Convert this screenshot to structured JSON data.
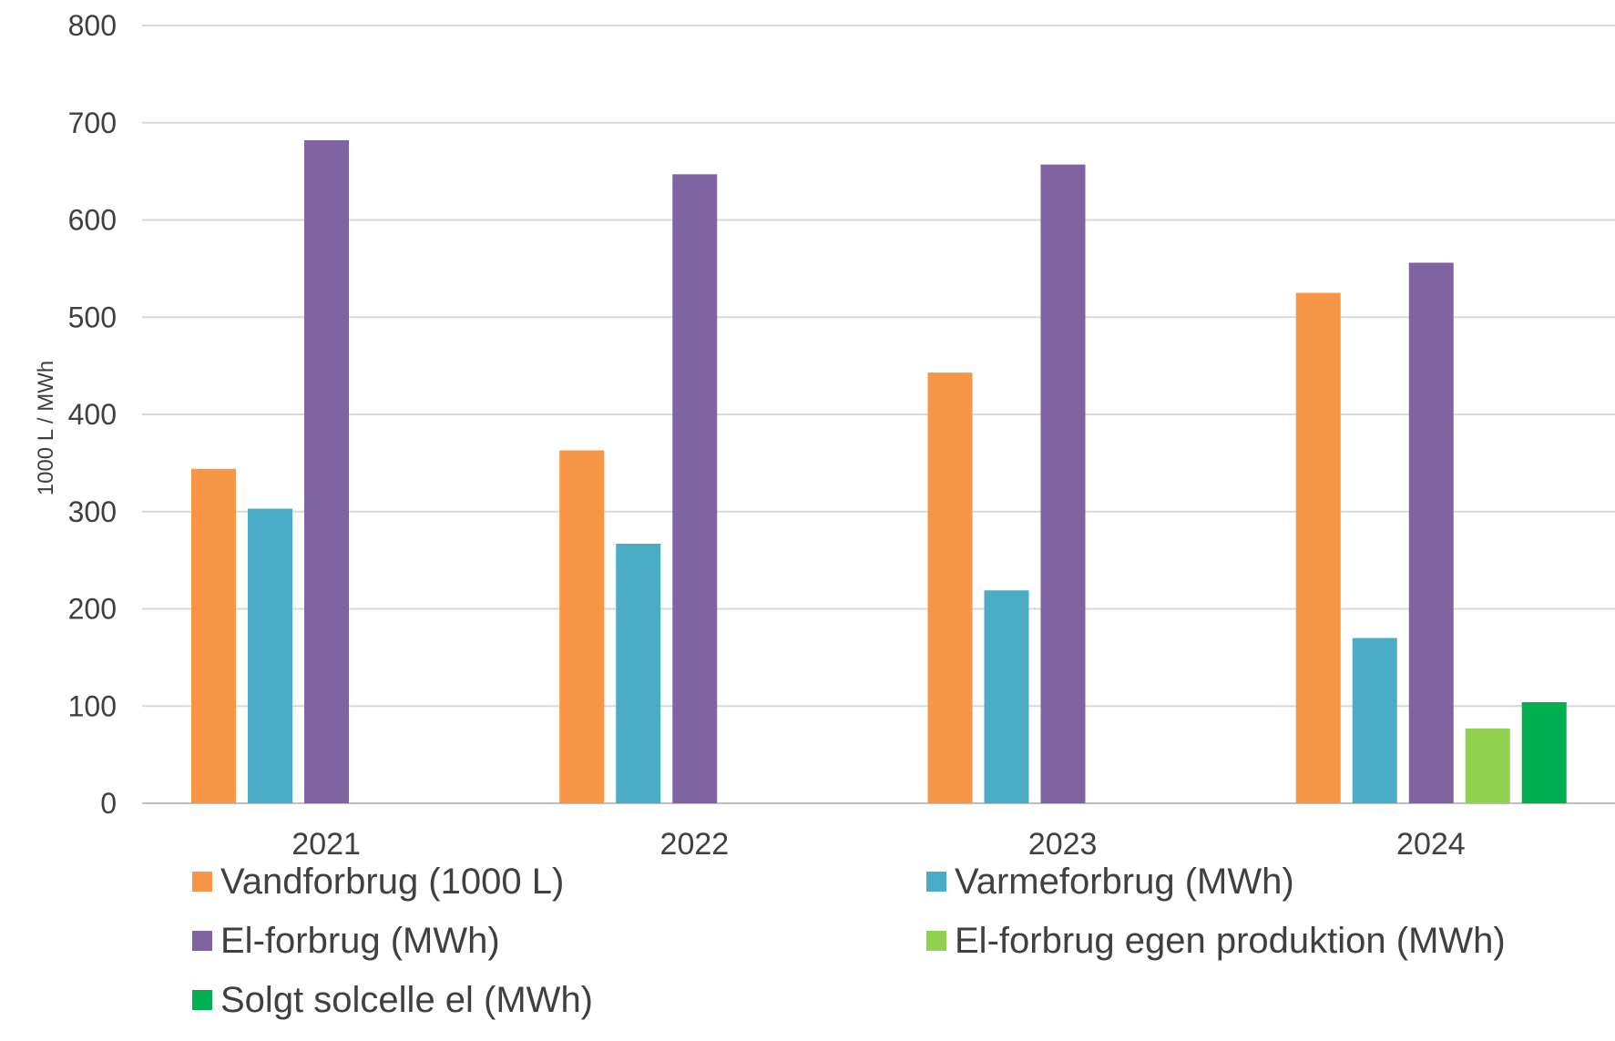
{
  "chart_data": {
    "type": "bar",
    "title": "",
    "xlabel": "",
    "ylabel": "1000 L / MWh",
    "ylim": [
      0,
      800
    ],
    "yticks": [
      0,
      100,
      200,
      300,
      400,
      500,
      600,
      700,
      800
    ],
    "grid": true,
    "legend_position": "bottom",
    "categories": [
      "2021",
      "2022",
      "2023",
      "2024"
    ],
    "series": [
      {
        "name": "Vandforbrug (1000 L)",
        "color": "#F79646",
        "values": [
          344,
          363,
          443,
          525
        ]
      },
      {
        "name": "Varmeforbrug (MWh)",
        "color": "#4BACC6",
        "values": [
          303,
          267,
          219,
          170
        ]
      },
      {
        "name": "El-forbrug (MWh)",
        "color": "#8064A2",
        "values": [
          682,
          647,
          657,
          556
        ]
      },
      {
        "name": "El-forbrug egen produktion (MWh)",
        "color": "#92D050",
        "values": [
          null,
          null,
          null,
          77
        ]
      },
      {
        "name": "Solgt solcelle el (MWh)",
        "color": "#00B050",
        "values": [
          null,
          null,
          null,
          104
        ]
      }
    ]
  }
}
